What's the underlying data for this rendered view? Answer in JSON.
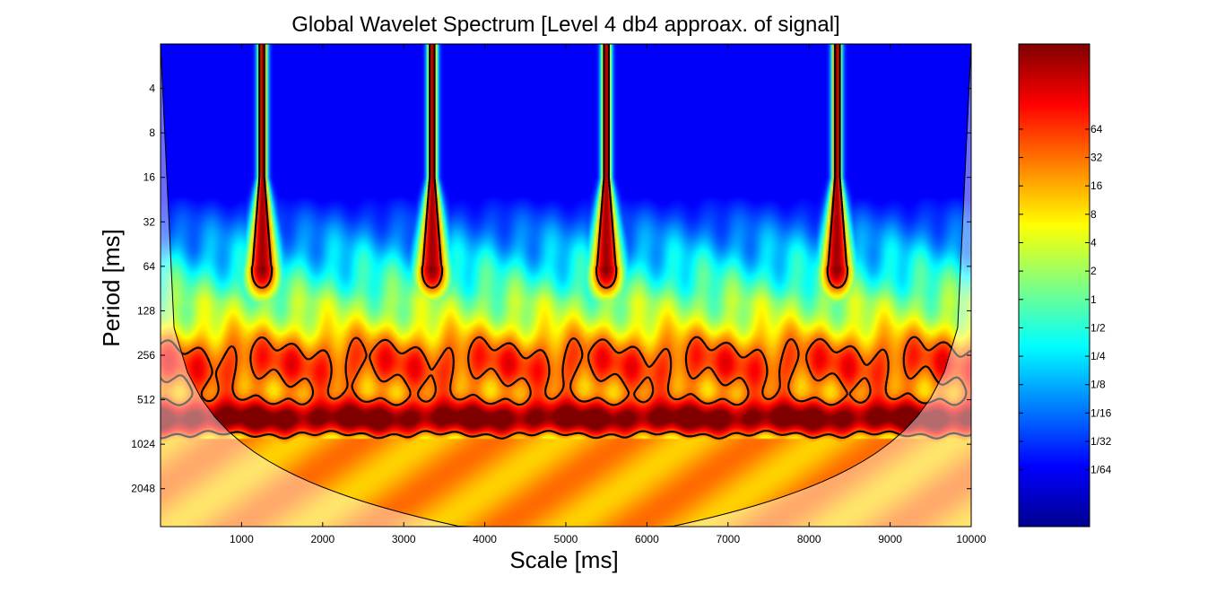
{
  "chart_data": {
    "type": "heatmap",
    "title": "Global Wavelet Spectrum [Level 4 db4 approax. of signal]",
    "xlabel": "Scale [ms]",
    "ylabel": "Period [ms]",
    "xlim": [
      0,
      10000
    ],
    "ylim": [
      2,
      3700
    ],
    "y_scale": "log2",
    "x_ticks": [
      1000,
      2000,
      3000,
      4000,
      5000,
      6000,
      7000,
      8000,
      9000,
      10000
    ],
    "y_ticks": [
      4,
      8,
      16,
      32,
      64,
      128,
      256,
      512,
      1024,
      2048
    ],
    "y_tick_labels": [
      "4",
      "8",
      "16",
      "32",
      "64",
      "128",
      "256",
      "512",
      "1024",
      "2048"
    ],
    "colormap": "jet",
    "colorbar": {
      "scale": "log2",
      "range": [
        0.0039,
        512
      ],
      "ticks": [
        0.015625,
        0.03125,
        0.0625,
        0.125,
        0.25,
        0.5,
        1,
        2,
        4,
        8,
        16,
        32,
        64
      ],
      "tick_labels": [
        "1/64",
        "1/32",
        "1/16",
        "1/8",
        "1/4",
        "1/2",
        "1",
        "2",
        "4",
        "8",
        "16",
        "32",
        "64"
      ]
    },
    "bursts": [
      {
        "center": 1250,
        "peak_period": 64
      },
      {
        "center": 3350,
        "peak_period": 64
      },
      {
        "center": 5500,
        "peak_period": 64
      },
      {
        "center": 8350,
        "peak_period": 64
      }
    ],
    "dominant_band_period": 700,
    "significance_contour_color": "#000000",
    "cone_of_influence": true
  }
}
